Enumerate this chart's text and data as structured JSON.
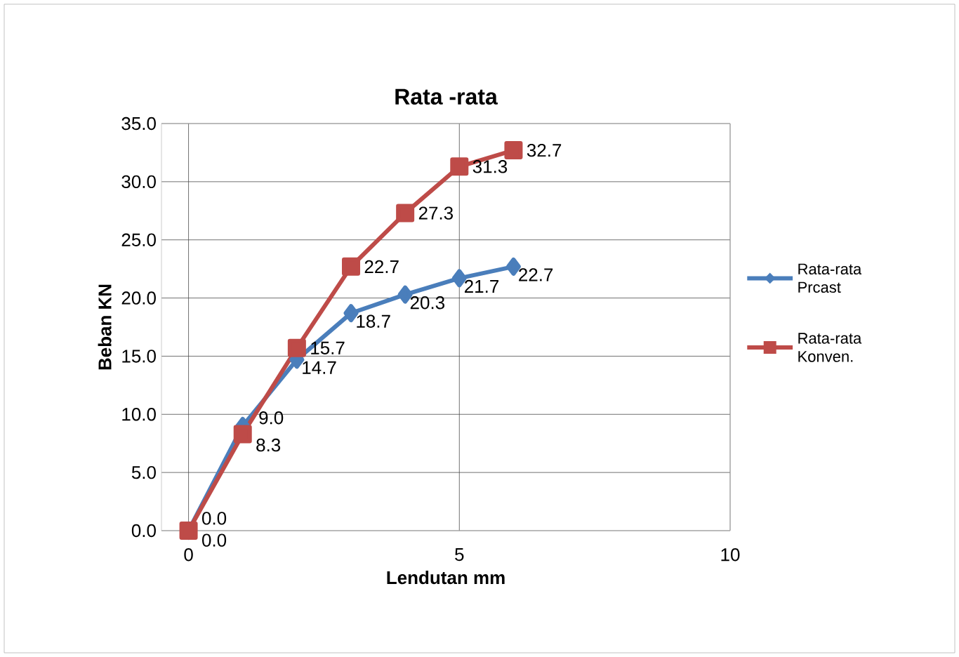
{
  "chart_data": {
    "type": "line",
    "title": "Rata -rata",
    "xlabel": "Lendutan mm",
    "ylabel": "Beban KN",
    "x": [
      0,
      1,
      2,
      3,
      4,
      5,
      6
    ],
    "series": [
      {
        "name": "Rata-rata Prcast",
        "color": "#4a7ebb",
        "marker": "diamond",
        "values": [
          0.0,
          9.0,
          14.7,
          18.7,
          20.3,
          21.7,
          22.7
        ],
        "value_labels": [
          "0.0",
          "9.0",
          "14.7",
          "18.7",
          "20.3",
          "21.7",
          "22.7"
        ]
      },
      {
        "name": "Rata-rata Konven.",
        "color": "#be4b48",
        "marker": "square",
        "values": [
          0.0,
          8.3,
          15.7,
          22.7,
          27.3,
          31.3,
          32.7
        ],
        "value_labels": [
          "0.0",
          "8.3",
          "15.7",
          "22.7",
          "27.3",
          "31.3",
          "32.7"
        ]
      }
    ],
    "xlim": [
      -0.5,
      10
    ],
    "ylim": [
      0,
      35
    ],
    "xticks": [
      0,
      5,
      10
    ],
    "yticks": [
      {
        "value": 0,
        "label": "0.0"
      },
      {
        "value": 5,
        "label": "5.0"
      },
      {
        "value": 10,
        "label": "10.0"
      },
      {
        "value": 15,
        "label": "15.0"
      },
      {
        "value": 20,
        "label": "20.0"
      },
      {
        "value": 25,
        "label": "25.0"
      },
      {
        "value": 30,
        "label": "30.0"
      },
      {
        "value": 35,
        "label": "35.0"
      }
    ],
    "grid": true,
    "legend": "right",
    "line_style": "solid"
  }
}
